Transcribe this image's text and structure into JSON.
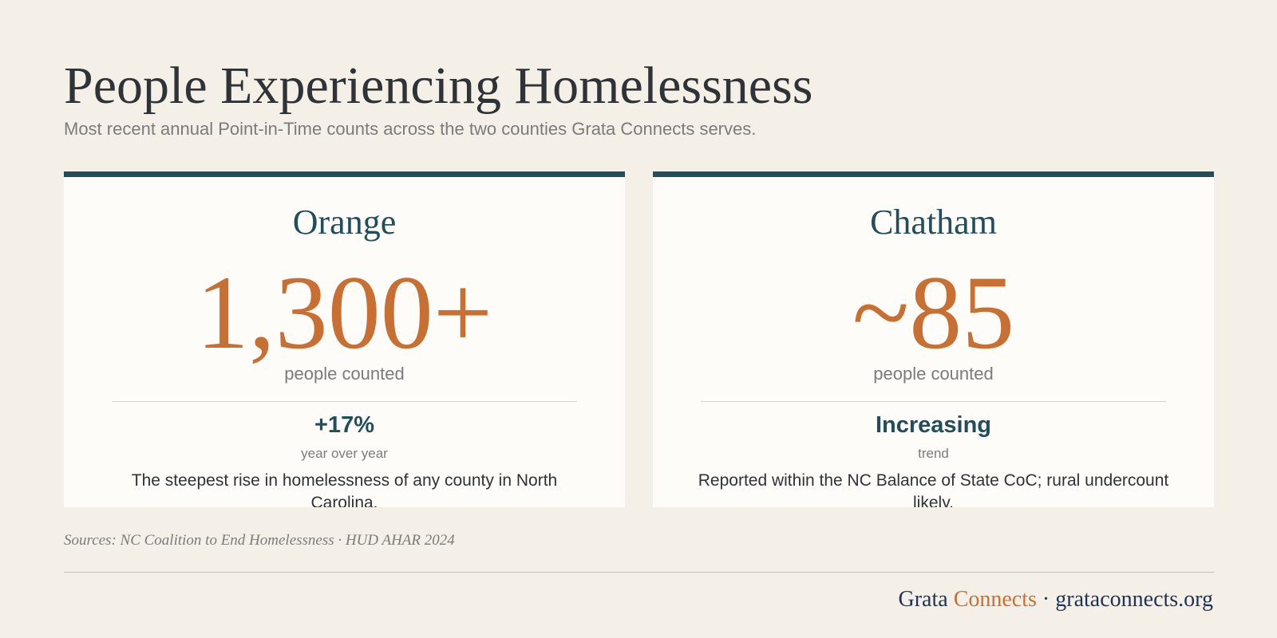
{
  "header": {
    "title": "People Experiencing Homelessness",
    "subtitle": "Most recent annual Point-in-Time counts across the two counties Grata Connects serves."
  },
  "cards": [
    {
      "county": "Orange",
      "count": "1,300+",
      "count_label": "people counted",
      "stat_value": "+17%",
      "stat_label": "year over year",
      "description": "The steepest rise in homelessness of any county in North Carolina."
    },
    {
      "county": "Chatham",
      "count": "~85",
      "count_label": "people counted",
      "stat_value": "Increasing",
      "stat_label": "trend",
      "description": "Reported within the NC Balance of State CoC; rural undercount likely."
    }
  ],
  "sources": "Sources: NC Coalition to End Homelessness · HUD AHAR 2024",
  "footer": {
    "brand_first": "Grata",
    "brand_second": "Connects",
    "separator": "·",
    "url": "grataconnects.org"
  },
  "colors": {
    "background": "#f4f0e8",
    "card_background": "#fdfcf8",
    "teal": "#224e5b",
    "orange": "#c87033",
    "navy": "#1f3357",
    "text_dark": "#2f3237",
    "text_muted": "#7b7b7b"
  }
}
